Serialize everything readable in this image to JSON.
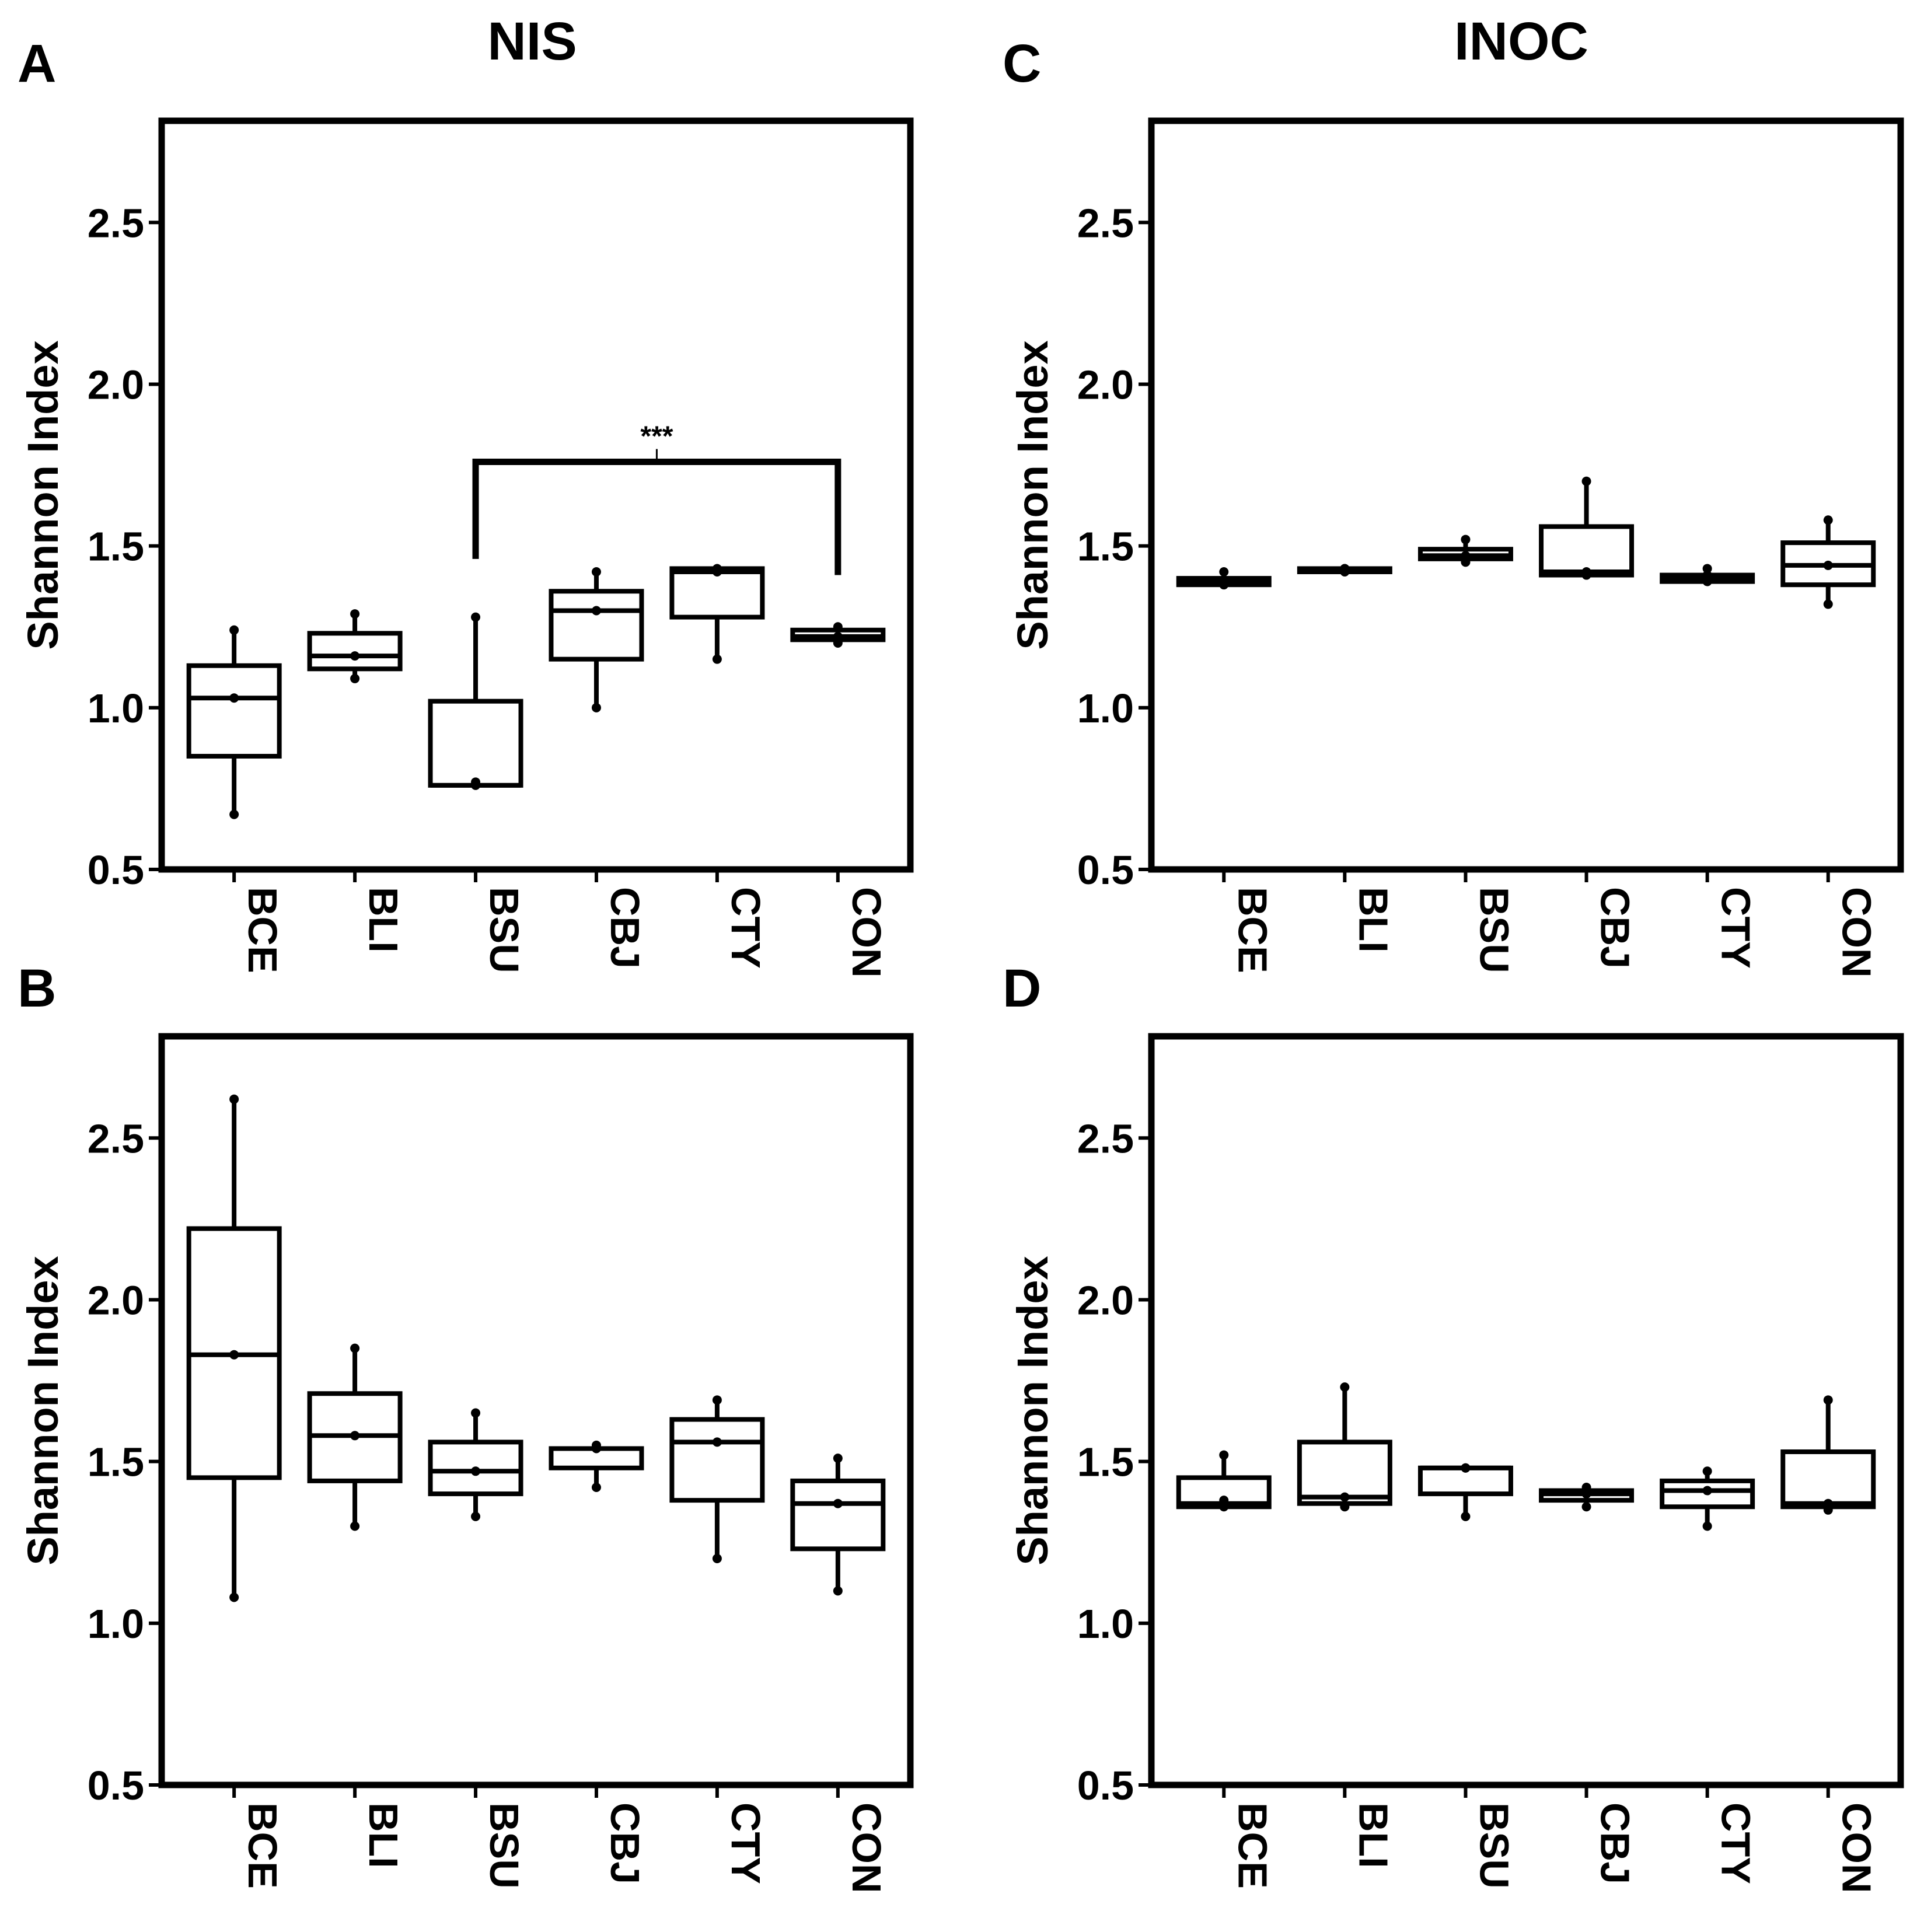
{
  "figure": {
    "column_titles": [
      "NIS",
      "INOC"
    ]
  },
  "chart_data": [
    {
      "panel": "A",
      "type": "box",
      "title": "NIS",
      "ylabel": "Shannon Index",
      "xlabel": "",
      "ylim": [
        0.5,
        2.8
      ],
      "yticks": [
        "0.5",
        "1.0",
        "1.5",
        "2.0",
        "2.5"
      ],
      "categories": [
        "BCE",
        "BLI",
        "BSU",
        "CBJ",
        "CTY",
        "CON"
      ],
      "boxes": [
        {
          "min": 0.67,
          "q1": 0.85,
          "median": 1.03,
          "q3": 1.13,
          "max": 1.24,
          "points": [
            0.67,
            1.03,
            1.24
          ]
        },
        {
          "min": 1.09,
          "q1": 1.12,
          "median": 1.16,
          "q3": 1.23,
          "max": 1.29,
          "points": [
            1.09,
            1.16,
            1.29
          ]
        },
        {
          "min": 0.76,
          "q1": 0.76,
          "median": 0.76,
          "q3": 1.02,
          "max": 1.28,
          "points": [
            0.76,
            0.77,
            1.28
          ]
        },
        {
          "min": 1.0,
          "q1": 1.15,
          "median": 1.3,
          "q3": 1.36,
          "max": 1.42,
          "points": [
            1.0,
            1.3,
            1.42
          ]
        },
        {
          "min": 1.15,
          "q1": 1.28,
          "median": 1.42,
          "q3": 1.43,
          "max": 1.43,
          "points": [
            1.15,
            1.42,
            1.43
          ]
        },
        {
          "min": 1.2,
          "q1": 1.21,
          "median": 1.22,
          "q3": 1.24,
          "max": 1.25,
          "points": [
            1.2,
            1.22,
            1.25
          ]
        }
      ],
      "significance": {
        "label": "***",
        "from": "BSU",
        "to": "CON",
        "level": 1.76
      }
    },
    {
      "panel": "B",
      "type": "box",
      "title": "",
      "ylabel": "Shannon Index",
      "xlabel": "",
      "ylim": [
        0.5,
        2.8
      ],
      "yticks": [
        "0.5",
        "1.0",
        "1.5",
        "2.0",
        "2.5"
      ],
      "categories": [
        "BCE",
        "BLI",
        "BSU",
        "CBJ",
        "CTY",
        "CON"
      ],
      "boxes": [
        {
          "min": 1.08,
          "q1": 1.45,
          "median": 1.83,
          "q3": 2.22,
          "max": 2.62,
          "points": [
            1.08,
            1.83,
            2.62
          ]
        },
        {
          "min": 1.3,
          "q1": 1.44,
          "median": 1.58,
          "q3": 1.71,
          "max": 1.85,
          "points": [
            1.3,
            1.58,
            1.85
          ]
        },
        {
          "min": 1.33,
          "q1": 1.4,
          "median": 1.47,
          "q3": 1.56,
          "max": 1.65,
          "points": [
            1.33,
            1.47,
            1.65
          ]
        },
        {
          "min": 1.42,
          "q1": 1.48,
          "median": 1.54,
          "q3": 1.54,
          "max": 1.55,
          "points": [
            1.42,
            1.54,
            1.55
          ]
        },
        {
          "min": 1.2,
          "q1": 1.38,
          "median": 1.56,
          "q3": 1.63,
          "max": 1.69,
          "points": [
            1.2,
            1.56,
            1.69
          ]
        },
        {
          "min": 1.1,
          "q1": 1.23,
          "median": 1.37,
          "q3": 1.44,
          "max": 1.51,
          "points": [
            1.1,
            1.37,
            1.51
          ]
        }
      ]
    },
    {
      "panel": "C",
      "type": "box",
      "title": "INOC",
      "ylabel": "Shannon Index",
      "xlabel": "",
      "ylim": [
        0.5,
        2.8
      ],
      "yticks": [
        "0.5",
        "1.0",
        "1.5",
        "2.0",
        "2.5"
      ],
      "categories": [
        "BCE",
        "BLI",
        "BSU",
        "CBJ",
        "CTY",
        "CON"
      ],
      "boxes": [
        {
          "min": 1.38,
          "q1": 1.38,
          "median": 1.39,
          "q3": 1.4,
          "max": 1.42,
          "points": [
            1.38,
            1.39,
            1.42
          ]
        },
        {
          "min": 1.42,
          "q1": 1.42,
          "median": 1.43,
          "q3": 1.43,
          "max": 1.43,
          "points": [
            1.42,
            1.43,
            1.43
          ]
        },
        {
          "min": 1.45,
          "q1": 1.46,
          "median": 1.47,
          "q3": 1.49,
          "max": 1.52,
          "points": [
            1.45,
            1.47,
            1.52
          ]
        },
        {
          "min": 1.41,
          "q1": 1.41,
          "median": 1.42,
          "q3": 1.56,
          "max": 1.7,
          "points": [
            1.41,
            1.42,
            1.7
          ]
        },
        {
          "min": 1.39,
          "q1": 1.39,
          "median": 1.4,
          "q3": 1.41,
          "max": 1.43,
          "points": [
            1.39,
            1.41,
            1.43
          ]
        },
        {
          "min": 1.32,
          "q1": 1.38,
          "median": 1.44,
          "q3": 1.51,
          "max": 1.58,
          "points": [
            1.32,
            1.44,
            1.58
          ]
        }
      ]
    },
    {
      "panel": "D",
      "type": "box",
      "title": "",
      "ylabel": "Shannon Index",
      "xlabel": "",
      "ylim": [
        0.5,
        2.8
      ],
      "yticks": [
        "0.5",
        "1.0",
        "1.5",
        "2.0",
        "2.5"
      ],
      "categories": [
        "BCE",
        "BLI",
        "BSU",
        "CBJ",
        "CTY",
        "CON"
      ],
      "boxes": [
        {
          "min": 1.36,
          "q1": 1.36,
          "median": 1.37,
          "q3": 1.45,
          "max": 1.52,
          "points": [
            1.36,
            1.38,
            1.52
          ]
        },
        {
          "min": 1.36,
          "q1": 1.37,
          "median": 1.39,
          "q3": 1.56,
          "max": 1.73,
          "points": [
            1.36,
            1.39,
            1.73
          ]
        },
        {
          "min": 1.33,
          "q1": 1.4,
          "median": 1.48,
          "q3": 1.48,
          "max": 1.48,
          "points": [
            1.33,
            1.48,
            1.48
          ]
        },
        {
          "min": 1.36,
          "q1": 1.38,
          "median": 1.4,
          "q3": 1.41,
          "max": 1.42,
          "points": [
            1.36,
            1.4,
            1.42
          ]
        },
        {
          "min": 1.3,
          "q1": 1.36,
          "median": 1.41,
          "q3": 1.44,
          "max": 1.47,
          "points": [
            1.3,
            1.41,
            1.47
          ]
        },
        {
          "min": 1.35,
          "q1": 1.36,
          "median": 1.37,
          "q3": 1.53,
          "max": 1.69,
          "points": [
            1.35,
            1.37,
            1.69
          ]
        }
      ]
    }
  ]
}
